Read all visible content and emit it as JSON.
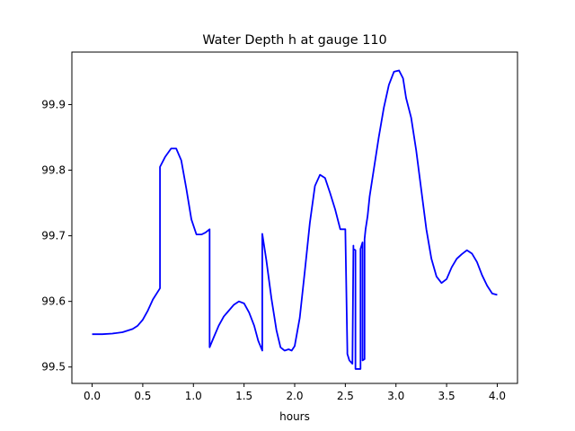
{
  "chart_data": {
    "type": "line",
    "title": "Water Depth h at gauge 110",
    "xlabel": "hours",
    "ylabel": "",
    "xlim": [
      -0.2,
      4.2
    ],
    "ylim": [
      99.475,
      99.98
    ],
    "grid": false,
    "xticks": [
      0.0,
      0.5,
      1.0,
      1.5,
      2.0,
      2.5,
      3.0,
      3.5,
      4.0
    ],
    "xtick_labels": [
      "0.0",
      "0.5",
      "1.0",
      "1.5",
      "2.0",
      "2.5",
      "3.0",
      "3.5",
      "4.0"
    ],
    "yticks": [
      99.5,
      99.6,
      99.7,
      99.8,
      99.9
    ],
    "ytick_labels": [
      "99.5",
      "99.6",
      "99.7",
      "99.8",
      "99.9"
    ],
    "series": [
      {
        "color": "#0000ff",
        "x": [
          0.0,
          0.1,
          0.2,
          0.3,
          0.4,
          0.45,
          0.5,
          0.55,
          0.6,
          0.67,
          0.67,
          0.72,
          0.78,
          0.83,
          0.88,
          0.93,
          0.98,
          1.03,
          1.08,
          1.12,
          1.16,
          1.16,
          1.2,
          1.25,
          1.3,
          1.35,
          1.4,
          1.45,
          1.5,
          1.55,
          1.6,
          1.64,
          1.68,
          1.68,
          1.72,
          1.77,
          1.82,
          1.86,
          1.9,
          1.94,
          1.97,
          2.0,
          2.05,
          2.1,
          2.15,
          2.2,
          2.25,
          2.3,
          2.35,
          2.4,
          2.45,
          2.5,
          2.52,
          2.52,
          2.54,
          2.57,
          2.58,
          2.58,
          2.6,
          2.6,
          2.62,
          2.65,
          2.65,
          2.67,
          2.67,
          2.69,
          2.69,
          2.7,
          2.71,
          2.72,
          2.74,
          2.78,
          2.83,
          2.88,
          2.93,
          2.98,
          3.03,
          3.07,
          3.1,
          3.15,
          3.2,
          3.25,
          3.3,
          3.35,
          3.4,
          3.45,
          3.5,
          3.55,
          3.6,
          3.65,
          3.7,
          3.75,
          3.8,
          3.85,
          3.9,
          3.95,
          4.0
        ],
        "y": [
          99.55,
          99.55,
          99.551,
          99.553,
          99.558,
          99.563,
          99.572,
          99.586,
          99.603,
          99.62,
          99.805,
          99.82,
          99.833,
          99.833,
          99.815,
          99.772,
          99.725,
          99.702,
          99.702,
          99.705,
          99.71,
          99.53,
          99.545,
          99.563,
          99.577,
          99.586,
          99.595,
          99.6,
          99.597,
          99.583,
          99.563,
          99.54,
          99.525,
          99.703,
          99.663,
          99.605,
          99.556,
          99.53,
          99.525,
          99.527,
          99.525,
          99.532,
          99.575,
          99.646,
          99.72,
          99.776,
          99.793,
          99.788,
          99.765,
          99.74,
          99.71,
          99.71,
          99.525,
          99.52,
          99.51,
          99.505,
          99.685,
          99.68,
          99.678,
          99.497,
          99.497,
          99.497,
          99.68,
          99.69,
          99.51,
          99.512,
          99.695,
          99.71,
          99.72,
          99.73,
          99.76,
          99.8,
          99.85,
          99.895,
          99.93,
          99.95,
          99.952,
          99.94,
          99.91,
          99.88,
          99.83,
          99.77,
          99.71,
          99.665,
          99.638,
          99.628,
          99.634,
          99.652,
          99.665,
          99.672,
          99.678,
          99.673,
          99.66,
          99.64,
          99.624,
          99.612,
          99.61
        ]
      }
    ]
  }
}
